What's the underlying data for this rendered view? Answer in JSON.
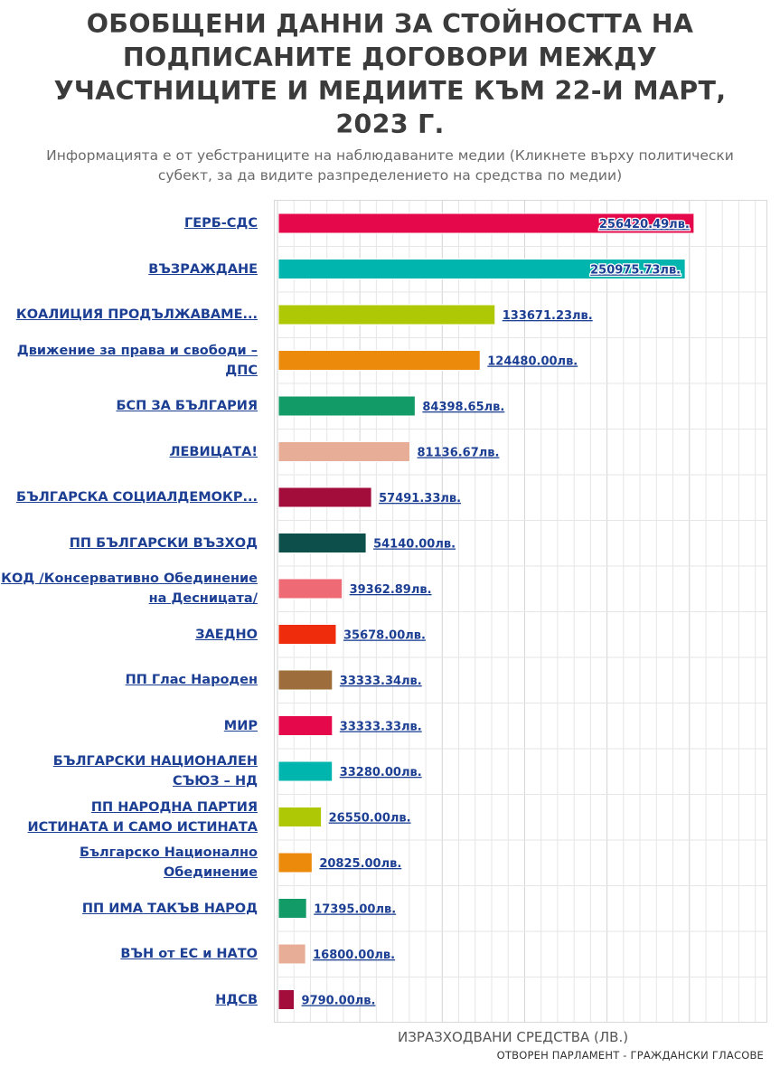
{
  "title": "ОБОБЩЕНИ ДАННИ ЗА СТОЙНОСТТА НА\nПОДПИСАНИТЕ ДОГОВОРИ МЕЖДУ\nУЧАСТНИЦИТЕ И МЕДИИТЕ КЪМ 22-И МАРТ,\n2023 Г.",
  "subtitle": "Информацията е от уебстраниците на наблюдаваните медии (Кликнете върху политически\nсубект, за да видите разпределението на средства по медии)",
  "xlabel": "ИЗРАЗХОДВАНИ СРЕДСТВА (ЛВ.)",
  "source": "ОТВОРЕН ПАРЛАМЕНТ - ГРАЖДАНСКИ ГЛАСОВЕ",
  "chart_data": {
    "type": "bar",
    "orientation": "horizontal",
    "title": "ОБОБЩЕНИ ДАННИ ЗА СТОЙНОСТТА НА ПОДПИСАНИТЕ ДОГОВОРИ МЕЖДУ УЧАСТНИЦИТЕ И МЕДИИТЕ КЪМ 22-И МАРТ, 2023 Г.",
    "xlabel": "ИЗРАЗХОДВАНИ СРЕДСТВА (ЛВ.)",
    "ylabel": "",
    "xlim": [
      0,
      300000
    ],
    "grid": true,
    "categories": [
      "ГЕРБ-СДС",
      "ВЪЗРАЖДАНЕ",
      "КОАЛИЦИЯ ПРОДЪЛЖАВАМЕ...",
      "Движение за права и свободи –\nДПС",
      "БСП ЗА БЪЛГАРИЯ",
      "ЛЕВИЦАТА!",
      "БЪЛГАРСКА СОЦИАЛДЕМОКР...",
      "ПП БЪЛГАРСКИ ВЪЗХОД",
      "КОД /Консервативно Обединение\nна Десницата/",
      "ЗАЕДНО",
      "ПП Глас Народен",
      "МИР",
      "БЪЛГАРСКИ НАЦИОНАЛЕН\nСЪЮЗ – НД",
      "ПП НАРОДНА ПАРТИЯ\nИСТИНАТА И САМО ИСТИНАТА",
      "Българско Национално\nОбединение",
      "ПП ИМА ТАКЪВ НАРОД",
      "ВЪН от ЕС и НАТО",
      "НДСВ"
    ],
    "values": [
      256420.49,
      250975.73,
      133671.23,
      124480.0,
      84398.65,
      81136.67,
      57491.33,
      54140.0,
      39362.89,
      35678.0,
      33333.34,
      33333.33,
      33280.0,
      26550.0,
      20825.0,
      17395.0,
      16800.0,
      9790.0
    ],
    "value_labels": [
      "256420.49лв.",
      "250975.73лв.",
      "133671.23лв.",
      "124480.00лв.",
      "84398.65лв.",
      "81136.67лв.",
      "57491.33лв.",
      "54140.00лв.",
      "39362.89лв.",
      "35678.00лв.",
      "33333.34лв.",
      "33333.33лв.",
      "33280.00лв.",
      "26550.00лв.",
      "20825.00лв.",
      "17395.00лв.",
      "16800.00лв.",
      "9790.00лв."
    ],
    "colors": [
      "#e5084a",
      "#00b5ae",
      "#afc806",
      "#ec8a0b",
      "#129b66",
      "#e8ad96",
      "#a30d3b",
      "#0d4f4b",
      "#ee6a74",
      "#ef2d0d",
      "#9d6e3b",
      "#e5084a",
      "#00b5ae",
      "#afc806",
      "#ec8a0b",
      "#129b66",
      "#e8ad96",
      "#a30d3b"
    ]
  }
}
